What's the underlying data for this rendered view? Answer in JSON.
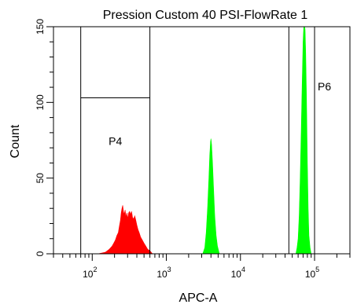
{
  "chart_data": {
    "type": "histogram",
    "title": "Pression Custom 40 PSI-FlowRate 1",
    "xlabel": "APC-A",
    "ylabel": "Count",
    "x_scale": "log",
    "xlim": [
      30,
      300000
    ],
    "ylim": [
      0,
      150
    ],
    "x_ticks": [
      {
        "value": 100,
        "base": "10",
        "exp": "2"
      },
      {
        "value": 1000,
        "base": "10",
        "exp": "3"
      },
      {
        "value": 10000,
        "base": "10",
        "exp": "4"
      },
      {
        "value": 100000,
        "base": "10",
        "exp": "5"
      }
    ],
    "y_ticks": [
      {
        "value": 0,
        "label": "0"
      },
      {
        "value": 50,
        "label": "50"
      },
      {
        "value": 100,
        "label": "100"
      },
      {
        "value": 150,
        "label": "150"
      }
    ],
    "gates": [
      {
        "name": "P4",
        "x_range": [
          70,
          600
        ],
        "y_top": 103
      },
      {
        "name": "P6",
        "x_range": [
          45000,
          100000
        ],
        "y_top": 150
      }
    ],
    "series": [
      {
        "color": "#ff0000",
        "points": [
          [
            120,
            0
          ],
          [
            150,
            1
          ],
          [
            170,
            3
          ],
          [
            185,
            5
          ],
          [
            195,
            7
          ],
          [
            205,
            9
          ],
          [
            215,
            12
          ],
          [
            225,
            14
          ],
          [
            232,
            18
          ],
          [
            240,
            22
          ],
          [
            246,
            27
          ],
          [
            252,
            30
          ],
          [
            258,
            32
          ],
          [
            264,
            28
          ],
          [
            270,
            26
          ],
          [
            278,
            29
          ],
          [
            286,
            24
          ],
          [
            294,
            27
          ],
          [
            302,
            23
          ],
          [
            310,
            27
          ],
          [
            320,
            28
          ],
          [
            330,
            26
          ],
          [
            340,
            28
          ],
          [
            350,
            24
          ],
          [
            362,
            23
          ],
          [
            375,
            25
          ],
          [
            388,
            22
          ],
          [
            400,
            19
          ],
          [
            415,
            16
          ],
          [
            430,
            14
          ],
          [
            450,
            11
          ],
          [
            475,
            9
          ],
          [
            500,
            7
          ],
          [
            530,
            5
          ],
          [
            560,
            3
          ],
          [
            600,
            2
          ],
          [
            650,
            0
          ]
        ]
      },
      {
        "color": "#00ff00",
        "points": [
          [
            3100,
            0
          ],
          [
            3300,
            4
          ],
          [
            3450,
            14
          ],
          [
            3600,
            30
          ],
          [
            3750,
            50
          ],
          [
            3850,
            65
          ],
          [
            3950,
            74
          ],
          [
            4000,
            76
          ],
          [
            4080,
            72
          ],
          [
            4200,
            60
          ],
          [
            4350,
            42
          ],
          [
            4500,
            25
          ],
          [
            4700,
            12
          ],
          [
            4900,
            5
          ],
          [
            5200,
            0
          ]
        ]
      },
      {
        "color": "#00ff00",
        "points": [
          [
            56000,
            0
          ],
          [
            58000,
            4
          ],
          [
            60000,
            10
          ],
          [
            62000,
            25
          ],
          [
            64000,
            50
          ],
          [
            66000,
            80
          ],
          [
            68000,
            112
          ],
          [
            70000,
            140
          ],
          [
            71500,
            150
          ],
          [
            73000,
            152
          ],
          [
            74500,
            148
          ],
          [
            76000,
            132
          ],
          [
            78000,
            100
          ],
          [
            80000,
            60
          ],
          [
            82000,
            30
          ],
          [
            84000,
            12
          ],
          [
            87000,
            4
          ],
          [
            90000,
            0
          ]
        ]
      }
    ]
  }
}
